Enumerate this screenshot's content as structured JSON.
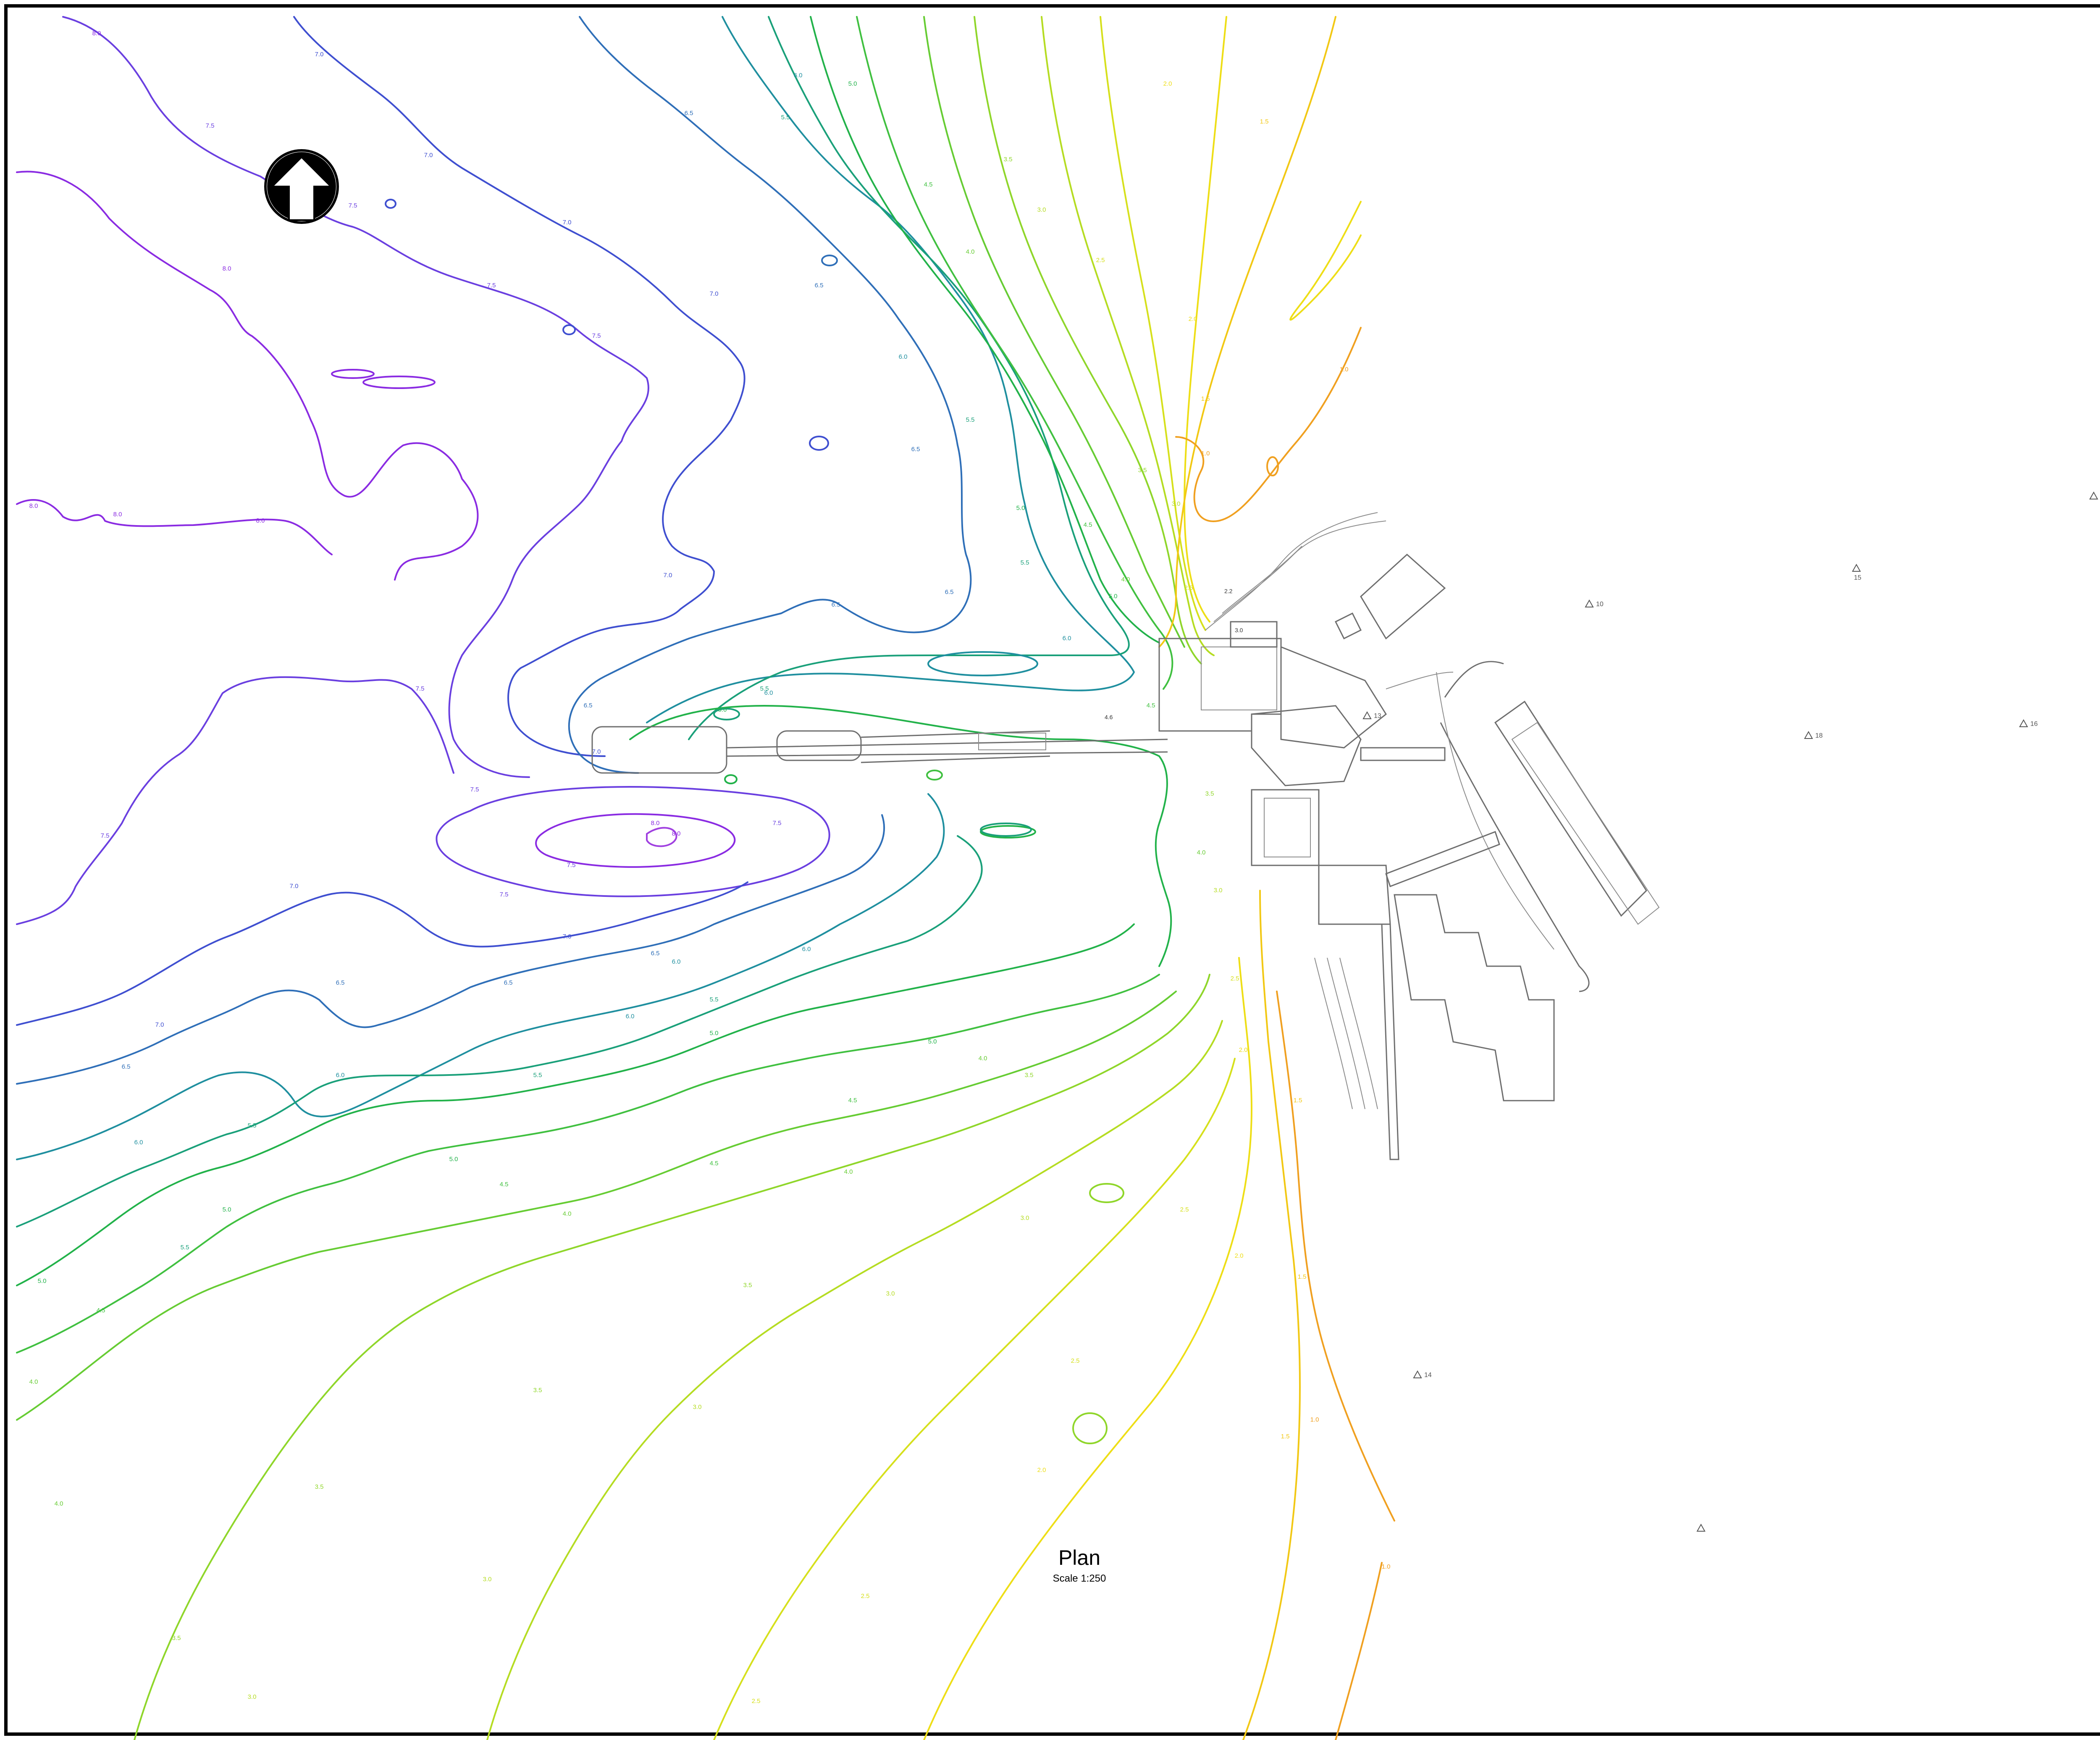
{
  "plan": {
    "title": "Plan",
    "scale": "Scale 1:250"
  },
  "north_arrow": {
    "icon": "north-arrow-icon"
  },
  "contour_labels": [
    "1.0",
    "1.5",
    "2.0",
    "2.5",
    "3.0",
    "3.5",
    "4.0",
    "4.5",
    "5.0",
    "5.5",
    "6.0",
    "6.5",
    "7.0",
    "7.5",
    "8.0"
  ],
  "survey_points": [
    {
      "label": "7"
    },
    {
      "label": "15"
    },
    {
      "label": "10"
    },
    {
      "label": "13"
    },
    {
      "label": "16"
    },
    {
      "label": "18"
    },
    {
      "label": "14"
    },
    {
      "label": ""
    },
    {
      "label": ""
    }
  ],
  "spot_heights": [
    "4.6",
    "2.2",
    "3.0"
  ],
  "colors": {
    "border": "#000000",
    "level_8_0": "#8a2be2",
    "level_7_5": "#6a3fe0",
    "level_7_0": "#3f4fd0",
    "level_6_5": "#2f6fb8",
    "level_6_0": "#1f8f9f",
    "level_5_5": "#1aa07a",
    "level_5_0": "#22b24a",
    "level_4_5": "#40c040",
    "level_4_0": "#66cc33",
    "level_3_5": "#8fd62a",
    "level_3_0": "#b5dc22",
    "level_2_5": "#d6e01c",
    "level_2_0": "#eede16",
    "level_1_5": "#f2c814",
    "level_1_0": "#f0a020",
    "buildings": "#6e6e6e"
  }
}
